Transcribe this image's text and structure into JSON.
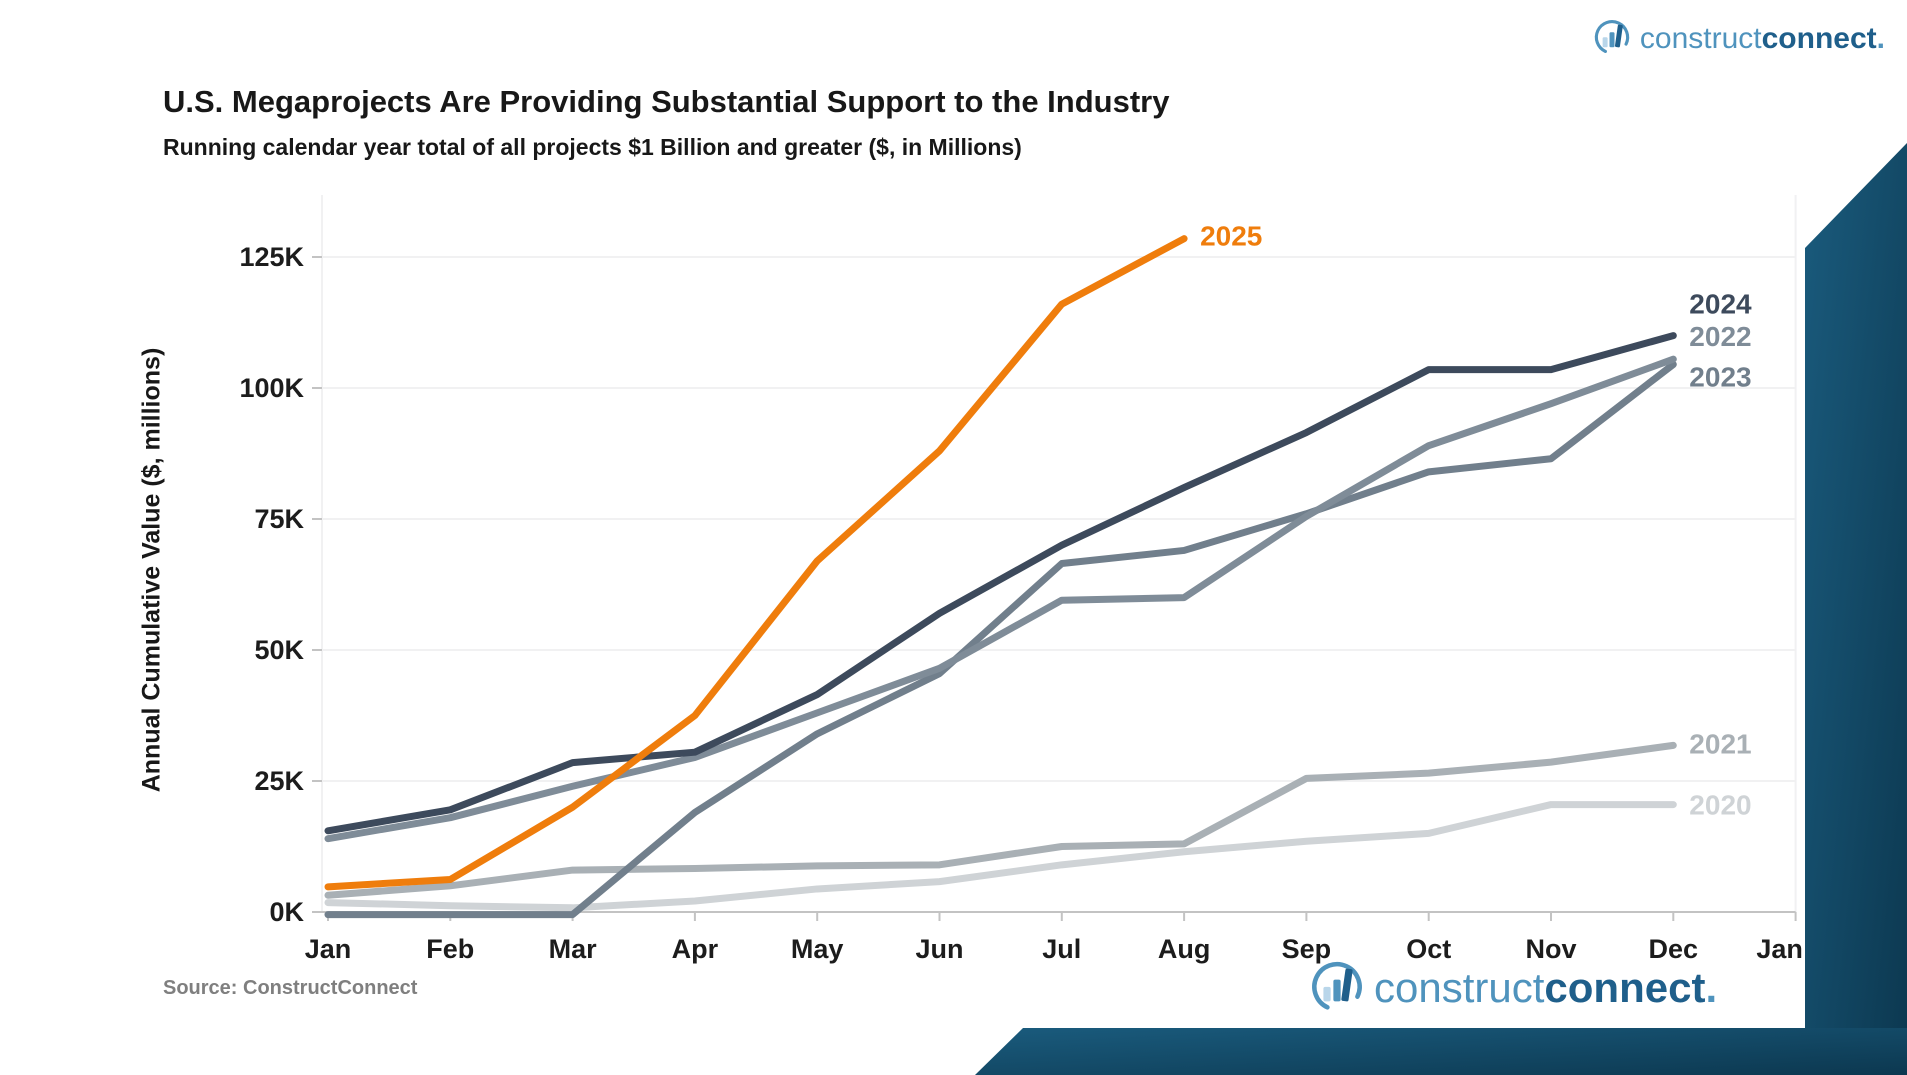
{
  "title": "U.S. Megaprojects Are Providing Substantial Support to the Industry",
  "subtitle": "Running calendar year total of all projects $1 Billion and greater ($, in Millions)",
  "y_axis_title": "Annual Cumulative Value ($, millions)",
  "source": "Source: ConstructConnect",
  "header_logo": {
    "part1": "construct",
    "part2": "connect",
    "dot": "."
  },
  "footer_logo": {
    "part1": "construct",
    "part2": "connect",
    "dot": "."
  },
  "colors": {
    "title_text": "#181818",
    "tick_text": "#1c1c1c",
    "gridline": "#f1f1f2",
    "axis_line": "#c3c3c3",
    "source_text": "#7f7f7f",
    "logo_light_blue": "#4f93bd",
    "logo_dark_blue": "#1f5f8b",
    "decor_gradient_start": "#1a5b7d",
    "decor_gradient_end": "#0c3850"
  },
  "chart_data": {
    "type": "line",
    "title": "U.S. Megaprojects Are Providing Substantial Support to the Industry",
    "subtitle": "Running calendar year total of all projects $1 Billion and greater ($, in Millions)",
    "xlabel": "",
    "ylabel": "Annual Cumulative Value ($, millions)",
    "x_tick_labels": [
      "Jan",
      "Feb",
      "Mar",
      "Apr",
      "May",
      "Jun",
      "Jul",
      "Aug",
      "Sep",
      "Oct",
      "Nov",
      "Dec",
      "Jan"
    ],
    "y_tick_labels": [
      "0K",
      "25K",
      "50K",
      "75K",
      "100K",
      "125K"
    ],
    "y_tick_values_k": [
      0,
      25,
      50,
      75,
      100,
      125
    ],
    "ylim_k": [
      -2,
      132
    ],
    "grid": "horizontal-only",
    "legend_position": "end-of-line-labels",
    "values_unit": "thousands of $ millions (K)",
    "series": [
      {
        "name": "2020",
        "color": "#cfd3d6",
        "values_k": [
          1.8,
          1.2,
          0.8,
          2.1,
          4.4,
          5.8,
          9,
          11.5,
          13.5,
          15,
          20.5,
          20.5
        ],
        "label_dy": 0
      },
      {
        "name": "2021",
        "color": "#a9b0b5",
        "values_k": [
          3.2,
          5,
          8,
          8.3,
          8.8,
          9,
          12.5,
          13,
          25.5,
          26.5,
          28.6,
          31.8
        ],
        "label_dy": -2
      },
      {
        "name": "2023",
        "color": "#717f8c",
        "values_k": [
          -0.5,
          -0.5,
          -0.5,
          19,
          34,
          45.5,
          66.5,
          69,
          76,
          84,
          86.5,
          104.5
        ],
        "label_dy": 12
      },
      {
        "name": "2022",
        "color": "#7f8c98",
        "values_k": [
          14,
          18,
          24,
          29.5,
          38,
          46.5,
          59.5,
          60,
          75.5,
          89,
          97,
          105.5
        ],
        "label_dy": -23
      },
      {
        "name": "2024",
        "color": "#3d4a5c",
        "values_k": [
          15.5,
          19.5,
          28.5,
          30.5,
          41.5,
          57,
          70,
          81,
          91.5,
          103.5,
          103.5,
          110
        ],
        "label_dy": -32
      },
      {
        "name": "2025",
        "color": "#ef7d0c",
        "values_k": [
          4.8,
          6.2,
          20,
          37.5,
          67,
          88,
          116,
          128.5
        ],
        "label_dy": -3
      }
    ]
  }
}
